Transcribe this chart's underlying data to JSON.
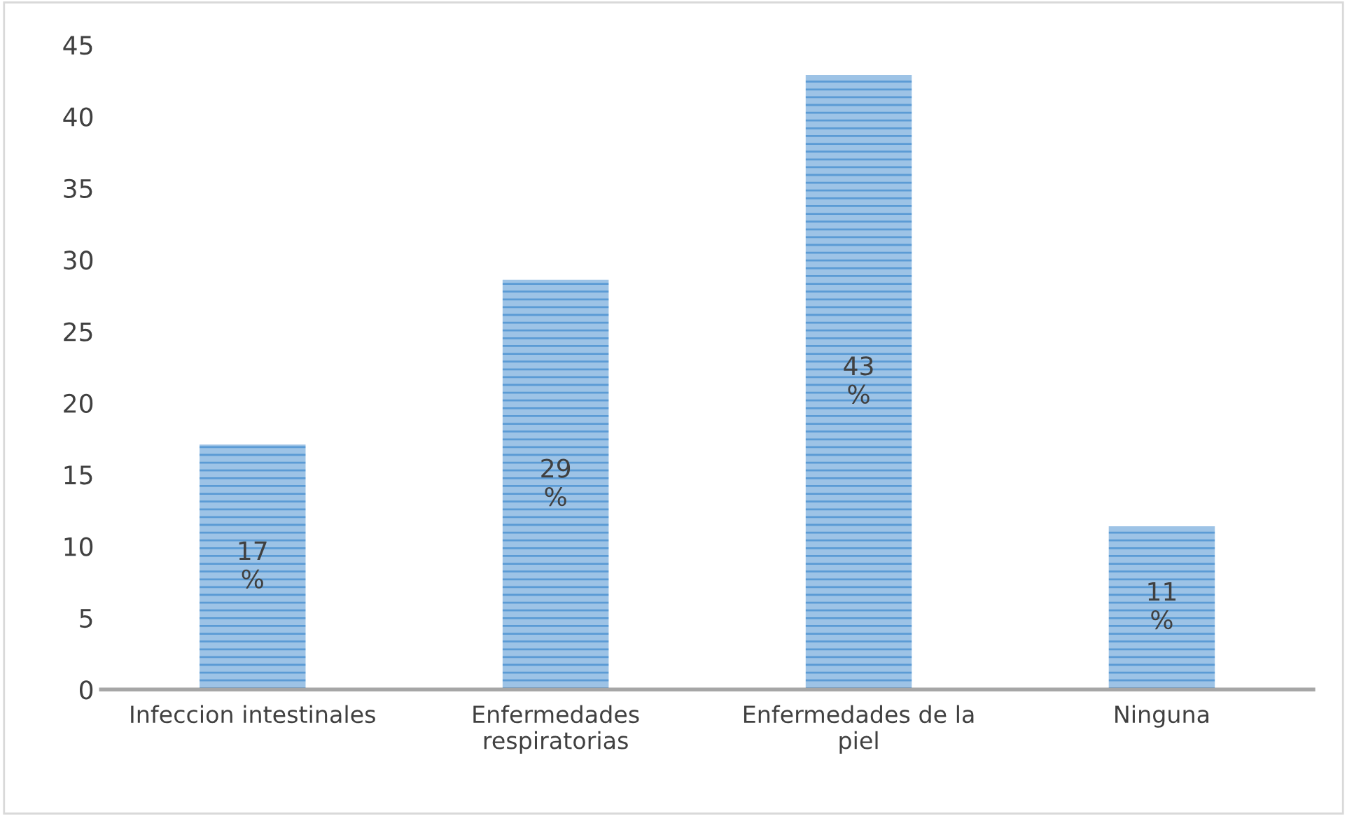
{
  "chart_data": {
    "type": "bar",
    "categories": [
      "Infeccion intestinales",
      "Enfermedades\nrespiratorias",
      "Enfermedades de la\npiel",
      "Ninguna"
    ],
    "values": [
      17.1,
      28.6,
      42.9,
      11.4
    ],
    "value_labels": [
      "17\n%",
      "29\n%",
      "43\n%",
      "11\n%"
    ],
    "color": "#9dc3e6",
    "ylim": [
      0,
      45
    ],
    "yticks": [
      0,
      5,
      10,
      15,
      20,
      25,
      30,
      35,
      40,
      45
    ],
    "grid": false,
    "legend": false
  }
}
